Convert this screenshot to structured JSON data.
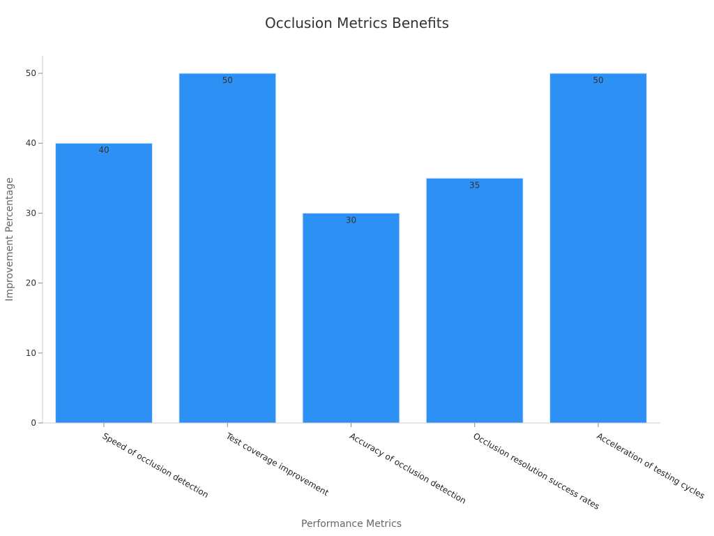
{
  "chart_data": {
    "type": "bar",
    "title": "Occlusion Metrics Benefits",
    "xlabel": "Performance Metrics",
    "ylabel": "Improvement Percentage",
    "categories": [
      "Speed of occlusion detection",
      "Test coverage improvement",
      "Accuracy of occlusion detection",
      "Occlusion resolution success rates",
      "Acceleration of testing cycles"
    ],
    "values": [
      40,
      50,
      30,
      35,
      50
    ],
    "ylim": [
      0,
      52.5
    ],
    "yticks": [
      0,
      10,
      20,
      30,
      40,
      50
    ],
    "grid": false,
    "legend": "none",
    "colors": {
      "bar": "#2d90f5",
      "bar_edge": "#d8e6f5"
    }
  }
}
